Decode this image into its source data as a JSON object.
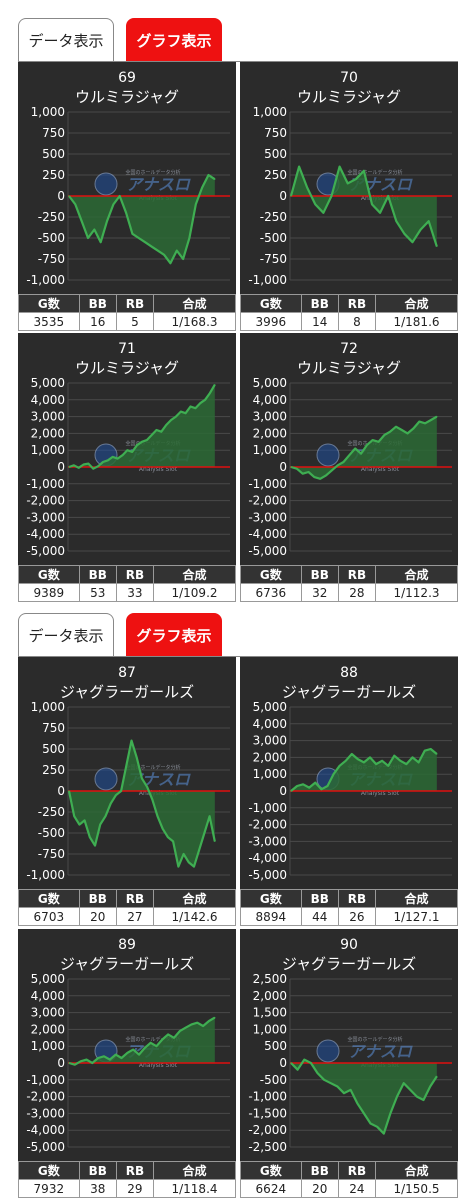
{
  "tab_groups": [
    {
      "data_tab": "データ表示",
      "graph_tab": "グラフ表示"
    },
    {
      "data_tab": "データ表示",
      "graph_tab": "グラフ表示"
    }
  ],
  "watermark": {
    "name": "アナスロ",
    "sub": "Analysis Slot",
    "small": "全国のホールデータ分析"
  },
  "stat_headers": [
    "G数",
    "BB",
    "RB",
    "合成"
  ],
  "colors": {
    "chart_bg": "#2b2b2b",
    "line": "#3fae52",
    "fill": "#2c6a35",
    "zero": "#e01010",
    "grid": "#4a4a4a",
    "active_tab": "#ee1111",
    "header": "#333333"
  },
  "panels": [
    {
      "number": "69",
      "name": "ウルミラジャグ",
      "stats": {
        "games": "3535",
        "bb": "16",
        "rb": "5",
        "ratio": "1/168.3"
      }
    },
    {
      "number": "70",
      "name": "ウルミラジャグ",
      "stats": {
        "games": "3996",
        "bb": "14",
        "rb": "8",
        "ratio": "1/181.6"
      }
    },
    {
      "number": "71",
      "name": "ウルミラジャグ",
      "stats": {
        "games": "9389",
        "bb": "53",
        "rb": "33",
        "ratio": "1/109.2"
      }
    },
    {
      "number": "72",
      "name": "ウルミラジャグ",
      "stats": {
        "games": "6736",
        "bb": "32",
        "rb": "28",
        "ratio": "1/112.3"
      }
    },
    {
      "number": "87",
      "name": "ジャグラーガールズ",
      "stats": {
        "games": "6703",
        "bb": "20",
        "rb": "27",
        "ratio": "1/142.6"
      }
    },
    {
      "number": "88",
      "name": "ジャグラーガールズ",
      "stats": {
        "games": "8894",
        "bb": "44",
        "rb": "26",
        "ratio": "1/127.1"
      }
    },
    {
      "number": "89",
      "name": "ジャグラーガールズ",
      "stats": {
        "games": "7932",
        "bb": "38",
        "rb": "29",
        "ratio": "1/118.4"
      }
    },
    {
      "number": "90",
      "name": "ジャグラーガールズ",
      "stats": {
        "games": "6624",
        "bb": "20",
        "rb": "24",
        "ratio": "1/150.5"
      }
    }
  ],
  "chart_data": [
    {
      "type": "line",
      "ylim": [
        -1000,
        1000
      ],
      "yticks": [
        "1,000",
        "750",
        "500",
        "250",
        "0",
        "-250",
        "-500",
        "-750",
        "-1,000"
      ],
      "series": [
        {
          "values": [
            0,
            -100,
            -300,
            -500,
            -400,
            -550,
            -300,
            -100,
            0,
            -200,
            -450,
            -500,
            -550,
            -600,
            -650,
            -700,
            -800,
            -650,
            -750,
            -500,
            -100,
            100,
            250,
            200
          ]
        }
      ]
    },
    {
      "type": "line",
      "ylim": [
        -1000,
        1000
      ],
      "yticks": [
        "1,000",
        "750",
        "500",
        "250",
        "0",
        "-250",
        "-500",
        "-750",
        "-1,000"
      ],
      "series": [
        {
          "values": [
            0,
            350,
            100,
            -100,
            -200,
            0,
            350,
            150,
            200,
            300,
            -100,
            -200,
            0,
            -300,
            -450,
            -550,
            -400,
            -300,
            -600
          ]
        }
      ]
    },
    {
      "type": "line",
      "ylim": [
        -5000,
        5000
      ],
      "yticks": [
        "5,000",
        "4,000",
        "3,000",
        "2,000",
        "1,000",
        "0",
        "-1,000",
        "-2,000",
        "-3,000",
        "-4,000",
        "-5,000"
      ],
      "series": [
        {
          "values": [
            0,
            100,
            -50,
            150,
            200,
            -100,
            50,
            300,
            400,
            600,
            500,
            700,
            1000,
            900,
            1300,
            1500,
            1600,
            1900,
            2200,
            2100,
            2500,
            2800,
            3000,
            3300,
            3200,
            3600,
            3500,
            3800,
            4000,
            4400,
            4900
          ]
        }
      ]
    },
    {
      "type": "line",
      "ylim": [
        -5000,
        5000
      ],
      "yticks": [
        "5,000",
        "4,000",
        "3,000",
        "2,000",
        "1,000",
        "0",
        "-1,000",
        "-2,000",
        "-3,000",
        "-4,000",
        "-5,000"
      ],
      "series": [
        {
          "values": [
            0,
            -100,
            -400,
            -300,
            -600,
            -700,
            -500,
            -200,
            100,
            300,
            700,
            1100,
            800,
            1300,
            1600,
            1500,
            1900,
            2100,
            2400,
            2200,
            2000,
            2300,
            2700,
            2600,
            2800,
            3000
          ]
        }
      ]
    },
    {
      "type": "line",
      "ylim": [
        -1000,
        1000
      ],
      "yticks": [
        "1,000",
        "750",
        "500",
        "250",
        "0",
        "-250",
        "-500",
        "-750",
        "-1,000"
      ],
      "series": [
        {
          "values": [
            0,
            -300,
            -400,
            -350,
            -550,
            -650,
            -400,
            -300,
            -150,
            -50,
            0,
            300,
            600,
            400,
            150,
            50,
            -100,
            -300,
            -450,
            -550,
            -600,
            -900,
            -750,
            -850,
            -900,
            -700,
            -500,
            -300,
            -600
          ]
        }
      ]
    },
    {
      "type": "line",
      "ylim": [
        -5000,
        5000
      ],
      "yticks": [
        "5,000",
        "4,000",
        "3,000",
        "2,000",
        "1,000",
        "0",
        "-1,000",
        "-2,000",
        "-3,000",
        "-4,000",
        "-5,000"
      ],
      "series": [
        {
          "values": [
            0,
            300,
            400,
            200,
            500,
            100,
            300,
            1000,
            1500,
            1800,
            2200,
            1900,
            1700,
            2000,
            1600,
            1800,
            1500,
            2100,
            1800,
            1600,
            2000,
            1700,
            2400,
            2500,
            2200
          ]
        }
      ]
    },
    {
      "type": "line",
      "ylim": [
        -5000,
        5000
      ],
      "yticks": [
        "5,000",
        "4,000",
        "3,000",
        "2,000",
        "1,000",
        "0",
        "-1,000",
        "-2,000",
        "-3,000",
        "-4,000",
        "-5,000"
      ],
      "series": [
        {
          "values": [
            0,
            -100,
            100,
            200,
            0,
            300,
            400,
            200,
            500,
            300,
            600,
            800,
            500,
            900,
            1200,
            1000,
            1400,
            1700,
            1500,
            1900,
            2100,
            2300,
            2400,
            2200,
            2500,
            2700
          ]
        }
      ]
    },
    {
      "type": "line",
      "ylim": [
        -2500,
        2500
      ],
      "yticks": [
        "2,500",
        "2,000",
        "1,500",
        "1,000",
        "500",
        "0",
        "-500",
        "-1,000",
        "-1,500",
        "-2,000",
        "-2,500"
      ],
      "series": [
        {
          "values": [
            0,
            -200,
            100,
            0,
            -300,
            -500,
            -600,
            -700,
            -900,
            -800,
            -1200,
            -1500,
            -1800,
            -1900,
            -2100,
            -1500,
            -1000,
            -600,
            -800,
            -1000,
            -1100,
            -700,
            -400
          ]
        }
      ]
    }
  ]
}
